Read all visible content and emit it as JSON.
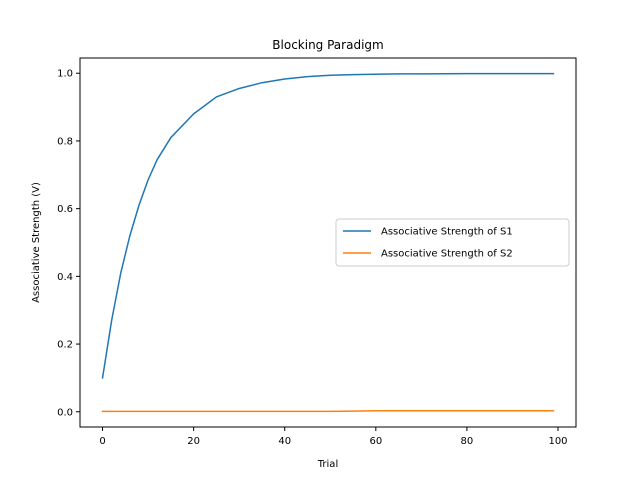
{
  "chart_data": {
    "type": "line",
    "title": "Blocking Paradigm",
    "xlabel": "Trial",
    "ylabel": "Associative Strength (V)",
    "xlim": [
      -4.95,
      103.95
    ],
    "ylim": [
      -0.045,
      1.045
    ],
    "x_ticks": [
      0,
      20,
      40,
      60,
      80,
      100
    ],
    "y_ticks": [
      0.0,
      0.2,
      0.4,
      0.6,
      0.8,
      1.0
    ],
    "x_tick_labels": [
      "0",
      "20",
      "40",
      "60",
      "80",
      "100"
    ],
    "y_tick_labels": [
      "0.0",
      "0.2",
      "0.4",
      "0.6",
      "0.8",
      "1.0"
    ],
    "grid": false,
    "legend": {
      "placement": "center-right"
    },
    "x": [
      0,
      2,
      4,
      6,
      8,
      10,
      12,
      15,
      20,
      25,
      30,
      35,
      40,
      45,
      50,
      55,
      60,
      65,
      70,
      80,
      90,
      99
    ],
    "series": [
      {
        "name": "Associative Strength of S1",
        "color": "#1f77b4",
        "values": [
          0.1,
          0.27,
          0.41,
          0.52,
          0.61,
          0.685,
          0.745,
          0.81,
          0.88,
          0.93,
          0.955,
          0.972,
          0.983,
          0.99,
          0.994,
          0.996,
          0.997,
          0.998,
          0.998,
          0.999,
          0.999,
          0.999
        ]
      },
      {
        "name": "Associative Strength of S2",
        "color": "#ff7f0e",
        "values": [
          0.001,
          0.001,
          0.001,
          0.001,
          0.001,
          0.001,
          0.001,
          0.001,
          0.001,
          0.001,
          0.001,
          0.001,
          0.001,
          0.001,
          0.001,
          0.002,
          0.003,
          0.003,
          0.003,
          0.003,
          0.003,
          0.003
        ]
      }
    ]
  }
}
